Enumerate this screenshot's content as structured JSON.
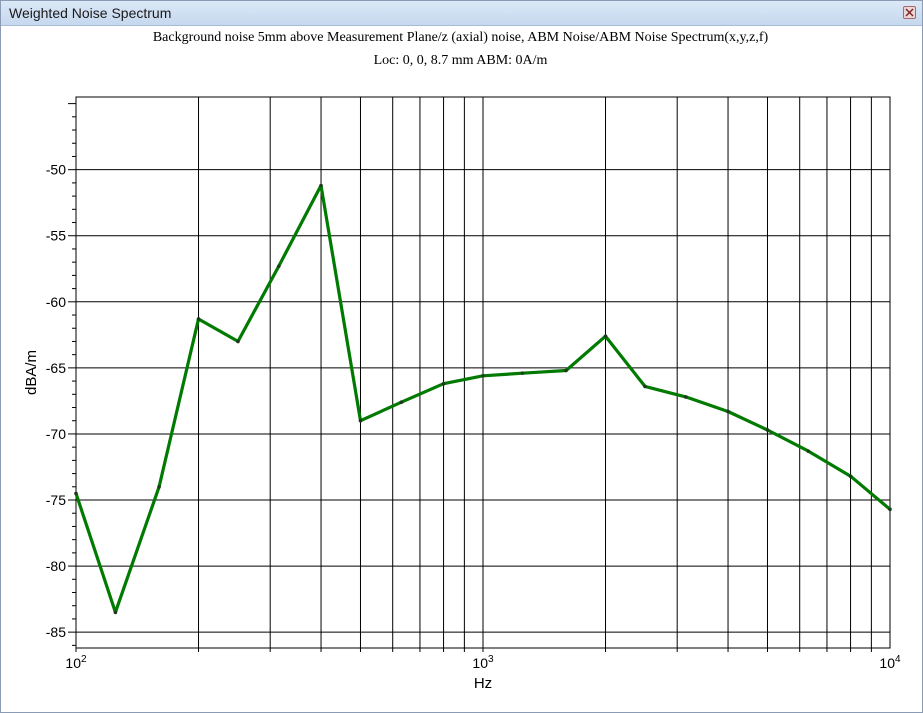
{
  "window": {
    "title": "Weighted Noise Spectrum",
    "close_icon": "close-icon"
  },
  "chart_data": {
    "type": "line",
    "title": "Background noise 5mm above Measurement Plane/z (axial) noise, ABM Noise/ABM Noise Spectrum(x,y,z,f)",
    "subtitle": "Loc: 0, 0, 8.7 mm ABM: 0A/m",
    "xlabel": "Hz",
    "ylabel": "dBA/m",
    "x_scale": "log",
    "xlim": [
      100,
      10000
    ],
    "ylim": [
      -86.2,
      -44.5
    ],
    "x_ticks": [
      100,
      1000,
      10000
    ],
    "x_tick_labels": [
      {
        "base": "10",
        "exp": "2"
      },
      {
        "base": "10",
        "exp": "3"
      },
      {
        "base": "10",
        "exp": "4"
      }
    ],
    "y_ticks": [
      -85,
      -80,
      -75,
      -70,
      -65,
      -60,
      -55,
      -50
    ],
    "y_tick_labels": [
      "-85",
      "-80",
      "-75",
      "-70",
      "-65",
      "-60",
      "-55",
      "-50"
    ],
    "grid": true,
    "line_color": "#007a00",
    "marker_color": "#1e3a1e",
    "series": [
      {
        "x": [
          100,
          125,
          160,
          200,
          250,
          315,
          400,
          500,
          630,
          800,
          1000,
          1250,
          1600,
          2000,
          2500,
          3150,
          4000,
          5000,
          6300,
          8000,
          10000
        ],
        "values": [
          -74.5,
          -83.5,
          -74.0,
          -61.3,
          -63.0,
          -57.3,
          -51.2,
          -69.0,
          -67.6,
          -66.2,
          -65.6,
          -65.4,
          -65.2,
          -62.6,
          -66.4,
          -67.2,
          -68.3,
          -69.7,
          -71.3,
          -73.2,
          -75.7
        ]
      }
    ]
  }
}
